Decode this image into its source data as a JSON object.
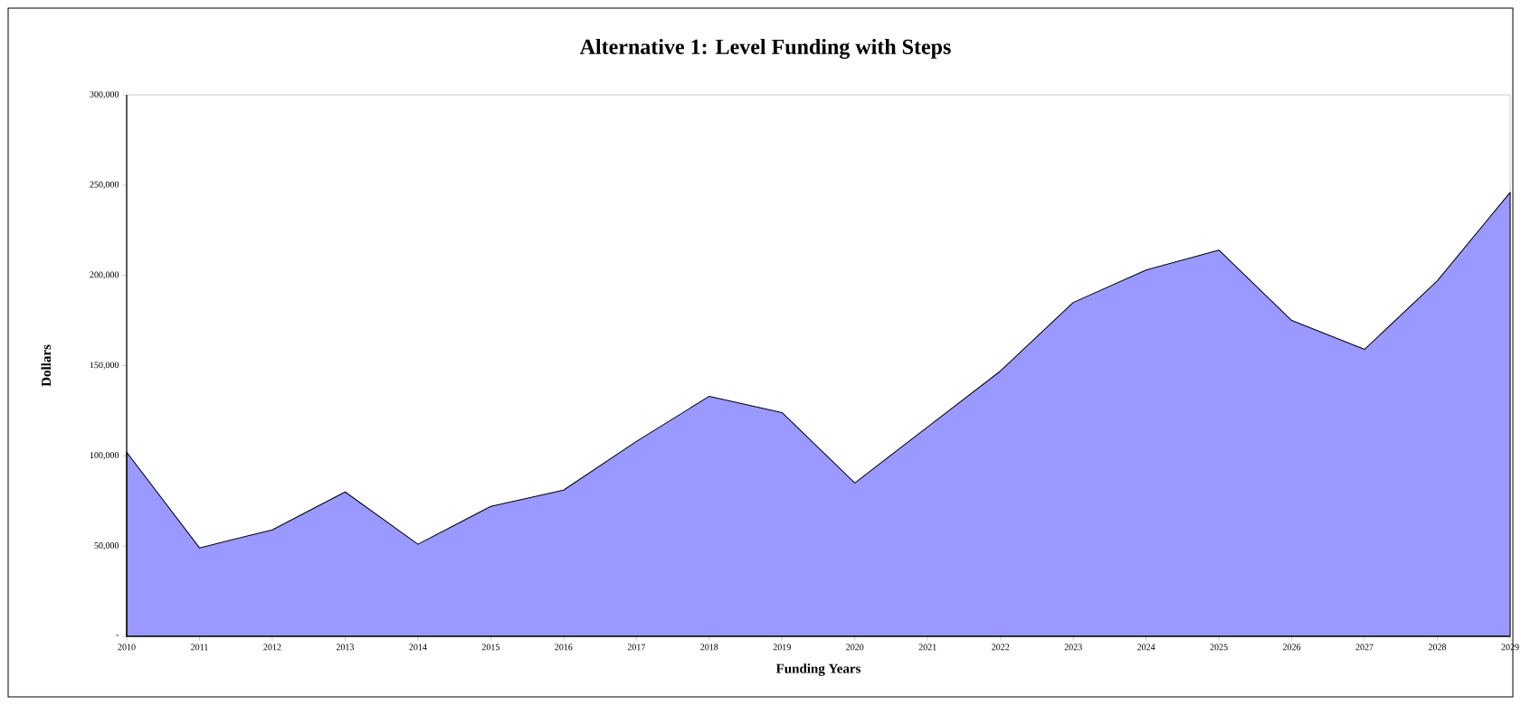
{
  "chart_data": {
    "type": "area",
    "title": "Alternative 1:  Level Funding with Steps",
    "xlabel": "Funding Years",
    "ylabel": "Dollars",
    "categories": [
      "2010",
      "2011",
      "2012",
      "2013",
      "2014",
      "2015",
      "2016",
      "2017",
      "2018",
      "2019",
      "2020",
      "2021",
      "2022",
      "2023",
      "2024",
      "2025",
      "2026",
      "2027",
      "2028",
      "2029"
    ],
    "values": [
      102000,
      49000,
      59000,
      80000,
      51000,
      72000,
      81000,
      108000,
      133000,
      124000,
      85000,
      116000,
      147000,
      185000,
      203000,
      214000,
      175000,
      159000,
      197000,
      246000
    ],
    "color": "#9999ff",
    "ylim": [
      0,
      300000
    ],
    "yticks": [
      {
        "value": 0,
        "label": "-"
      },
      {
        "value": 50000,
        "label": "50,000"
      },
      {
        "value": 100000,
        "label": "100,000"
      },
      {
        "value": 150000,
        "label": "150,000"
      },
      {
        "value": 200000,
        "label": "200,000"
      },
      {
        "value": 250000,
        "label": "250,000"
      },
      {
        "value": 300000,
        "label": "300,000"
      }
    ],
    "grid": false
  }
}
